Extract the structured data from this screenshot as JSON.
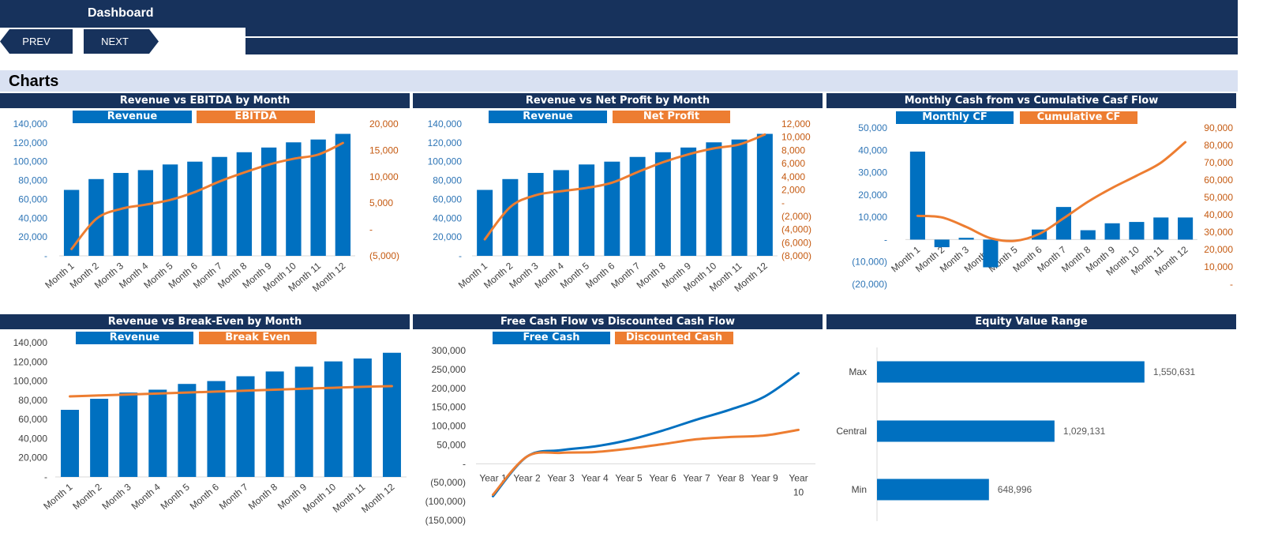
{
  "header": {
    "title": "Dashboard",
    "prev_label": "PREV",
    "next_label": "NEXT"
  },
  "section": {
    "title": "Charts"
  },
  "colors": {
    "navy": "#17325C",
    "blue": "#0070C0",
    "orange": "#ED7D31",
    "band": "#D9E1F2"
  },
  "chart_data": [
    {
      "title": "Revenue vs EBITDA by Month",
      "type": "bar",
      "categories": [
        "Month 1",
        "Month 2",
        "Month 3",
        "Month 4",
        "Month 5",
        "Month 6",
        "Month 7",
        "Month 8",
        "Month 9",
        "Month 10",
        "Month 11",
        "Month 12"
      ],
      "series": [
        {
          "name": "Revenue",
          "type": "bar",
          "axis": "left",
          "values": [
            70000,
            81500,
            88000,
            91000,
            97000,
            100000,
            105000,
            110000,
            115000,
            120500,
            123500,
            129500
          ]
        },
        {
          "name": "EBITDA",
          "type": "line",
          "axis": "right",
          "values": [
            -3700,
            2000,
            3900,
            4700,
            5600,
            7100,
            9100,
            10800,
            12300,
            13400,
            14200,
            16400
          ]
        }
      ],
      "ylim_left": [
        0,
        140000
      ],
      "yticks_left": [
        "-",
        "20,000",
        "40,000",
        "60,000",
        "80,000",
        "100,000",
        "120,000",
        "140,000"
      ],
      "ylim_right": [
        -5000,
        20000
      ],
      "yticks_right": [
        "(5,000)",
        "-",
        "5,000",
        "10,000",
        "15,000",
        "20,000"
      ],
      "legend": "top",
      "grid": false
    },
    {
      "title": "Revenue vs Net Profit by Month",
      "type": "bar",
      "categories": [
        "Month 1",
        "Month 2",
        "Month 3",
        "Month 4",
        "Month 5",
        "Month 6",
        "Month 7",
        "Month 8",
        "Month 9",
        "Month 10",
        "Month 11",
        "Month 12"
      ],
      "series": [
        {
          "name": "Revenue",
          "type": "bar",
          "axis": "left",
          "values": [
            70000,
            81500,
            88000,
            91000,
            97000,
            100000,
            105000,
            110000,
            115000,
            120500,
            123500,
            129500
          ]
        },
        {
          "name": "Net Profit",
          "type": "line",
          "axis": "right",
          "values": [
            -5500,
            -600,
            1200,
            1800,
            2300,
            3100,
            4700,
            6200,
            7400,
            8300,
            8900,
            10400
          ]
        }
      ],
      "ylim_left": [
        0,
        140000
      ],
      "yticks_left": [
        "-",
        "20,000",
        "40,000",
        "60,000",
        "80,000",
        "100,000",
        "120,000",
        "140,000"
      ],
      "ylim_right": [
        -8000,
        12000
      ],
      "yticks_right": [
        "(8,000)",
        "(6,000)",
        "(4,000)",
        "(2,000)",
        "-",
        "2,000",
        "4,000",
        "6,000",
        "8,000",
        "10,000",
        "12,000"
      ],
      "legend": "top",
      "grid": false
    },
    {
      "title": "Monthly Cash from vs Cumulative Casf Flow",
      "type": "bar",
      "categories": [
        "Month 1",
        "Month 2",
        "Month 3",
        "Month 4",
        "Month 5",
        "Month 6",
        "Month 7",
        "Month 8",
        "Month 9",
        "Month 10",
        "Month 11",
        "Month 12"
      ],
      "series": [
        {
          "name": "Monthly CF",
          "type": "bar",
          "axis": "left",
          "values": [
            39400,
            -3400,
            800,
            -12400,
            0,
            4500,
            14600,
            4200,
            7300,
            7900,
            9900,
            9900
          ]
        },
        {
          "name": "Cumulative CF",
          "type": "line",
          "axis": "right",
          "values": [
            39400,
            38500,
            33000,
            26500,
            25000,
            29000,
            38000,
            47500,
            55500,
            62500,
            70000,
            81800
          ]
        }
      ],
      "ylim_left": [
        -20000,
        50000
      ],
      "yticks_left": [
        "(20,000)",
        "(10,000)",
        "-",
        "10,000",
        "20,000",
        "30,000",
        "40,000",
        "50,000"
      ],
      "ylim_right": [
        0,
        90000
      ],
      "yticks_right": [
        "-",
        "10,000",
        "20,000",
        "30,000",
        "40,000",
        "50,000",
        "60,000",
        "70,000",
        "80,000",
        "90,000"
      ],
      "legend": "top",
      "grid": false
    },
    {
      "title": "Revenue vs Break-Even by Month",
      "type": "bar",
      "categories": [
        "Month 1",
        "Month 2",
        "Month 3",
        "Month 4",
        "Month 5",
        "Month 6",
        "Month 7",
        "Month 8",
        "Month 9",
        "Month 10",
        "Month 11",
        "Month 12"
      ],
      "series": [
        {
          "name": "Revenue",
          "type": "bar",
          "axis": "left",
          "values": [
            70000,
            81500,
            88000,
            91000,
            97000,
            100000,
            105000,
            110000,
            115000,
            120500,
            123500,
            129500
          ]
        },
        {
          "name": "Break Even",
          "type": "line",
          "axis": "left",
          "values": [
            84000,
            85000,
            86000,
            87000,
            88000,
            89000,
            90000,
            91000,
            92000,
            93000,
            94000,
            94700
          ]
        }
      ],
      "ylim_left": [
        0,
        140000
      ],
      "yticks_left": [
        "-",
        "20,000",
        "40,000",
        "60,000",
        "80,000",
        "100,000",
        "120,000",
        "140,000"
      ],
      "legend": "top",
      "grid": false
    },
    {
      "title": "Free Cash Flow vs Discounted Cash Flow",
      "type": "line",
      "categories": [
        "Year 1",
        "Year 2",
        "Year 3",
        "Year 4",
        "Year 5",
        "Year 6",
        "Year 7",
        "Year 8",
        "Year 9",
        "Year 10"
      ],
      "series": [
        {
          "name": "Free Cash",
          "type": "line",
          "axis": "left",
          "values": [
            -86000,
            19000,
            36000,
            46000,
            63000,
            88000,
            117000,
            144000,
            178000,
            240000
          ]
        },
        {
          "name": "Discounted Cash",
          "type": "line",
          "axis": "left",
          "values": [
            -82000,
            19000,
            29000,
            31000,
            40000,
            52000,
            65000,
            71000,
            75000,
            90000
          ]
        }
      ],
      "ylim_left": [
        -150000,
        300000
      ],
      "yticks_left": [
        "(150,000)",
        "(100,000)",
        "(50,000)",
        "-",
        "50,000",
        "100,000",
        "150,000",
        "200,000",
        "250,000",
        "300,000"
      ],
      "legend": "top",
      "grid": false
    },
    {
      "title": "Equity Value Range",
      "type": "bar",
      "orientation": "horizontal",
      "categories": [
        "Max",
        "Central",
        "Min"
      ],
      "values": [
        1550631,
        1029131,
        648996
      ],
      "data_labels": [
        "1,550,631",
        "1,029,131",
        "648,996"
      ],
      "xlim": [
        0,
        2000000
      ],
      "grid": false
    }
  ]
}
